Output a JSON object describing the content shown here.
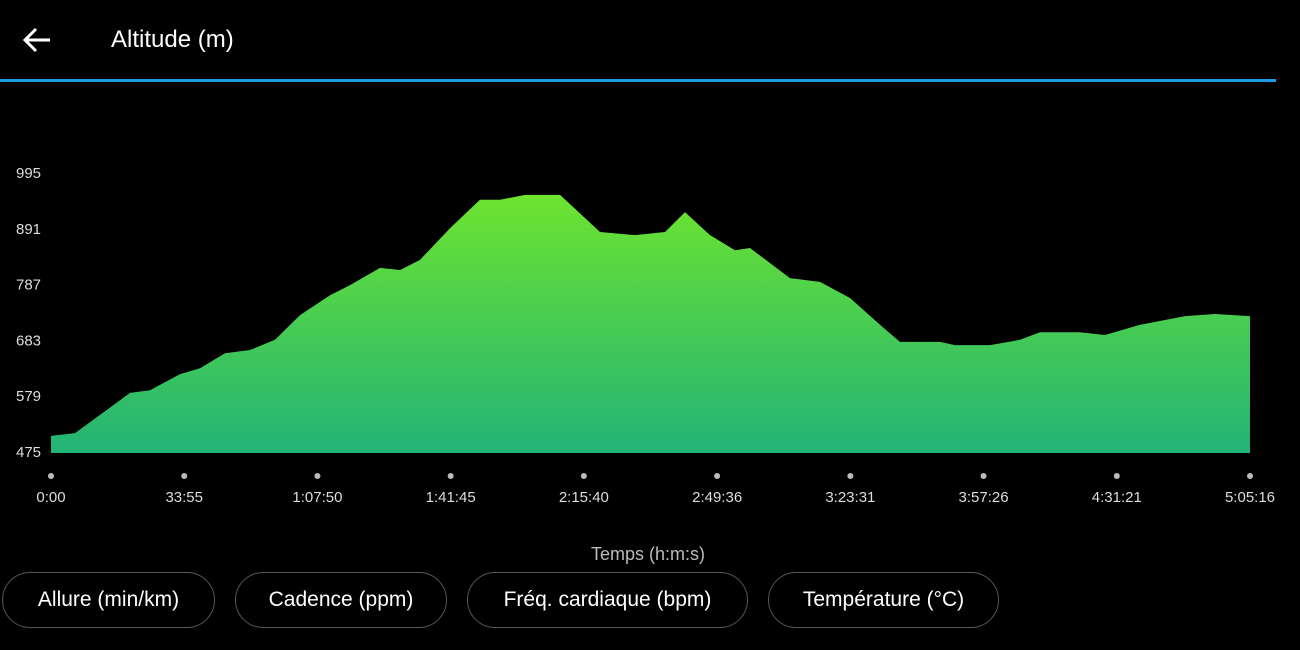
{
  "header": {
    "title": "Altitude (m)"
  },
  "chart_data": {
    "type": "area",
    "x_label": "Temps (h:m:s)",
    "x": [
      0,
      367,
      749,
      1207,
      1512,
      1971,
      2276,
      2658,
      3040,
      3422,
      3804,
      4262,
      4568,
      5026,
      5332,
      5637,
      6095,
      6553,
      6859,
      7241,
      7776,
      8387,
      8921,
      9380,
      9685,
      10067,
      10449,
      10678,
      11289,
      11747,
      12206,
      12664,
      12969,
      13580,
      13809,
      14344,
      14803,
      15108,
      15719,
      16101,
      16636,
      17323,
      17781,
      18316
    ],
    "values": [
      507,
      512,
      546,
      587,
      592,
      622,
      633,
      661,
      667,
      686,
      732,
      769,
      788,
      820,
      816,
      835,
      894,
      947,
      947,
      956,
      956,
      887,
      881,
      887,
      924,
      881,
      853,
      857,
      801,
      794,
      764,
      714,
      682,
      682,
      676,
      676,
      686,
      700,
      700,
      695,
      714,
      730,
      734,
      730
    ],
    "xlim": [
      0,
      18316
    ],
    "xticks": [
      {
        "value": 0,
        "label": "0:00"
      },
      {
        "value": 2035,
        "label": "33:55"
      },
      {
        "value": 4070,
        "label": "1:07:50"
      },
      {
        "value": 6105,
        "label": "1:41:45"
      },
      {
        "value": 8140,
        "label": "2:15:40"
      },
      {
        "value": 10176,
        "label": "2:49:36"
      },
      {
        "value": 12211,
        "label": "3:23:31"
      },
      {
        "value": 14246,
        "label": "3:57:26"
      },
      {
        "value": 16281,
        "label": "4:31:21"
      },
      {
        "value": 18316,
        "label": "5:05:16"
      }
    ],
    "ylim": [
      475,
      995
    ],
    "yticks": [
      475,
      579,
      683,
      787,
      891,
      995
    ],
    "gradient": [
      "#6de42f",
      "#22b377"
    ]
  },
  "chips": [
    "Allure (min/km)",
    "Cadence (ppm)",
    "Fréq. cardiaque (bpm)",
    "Température (°C)"
  ]
}
